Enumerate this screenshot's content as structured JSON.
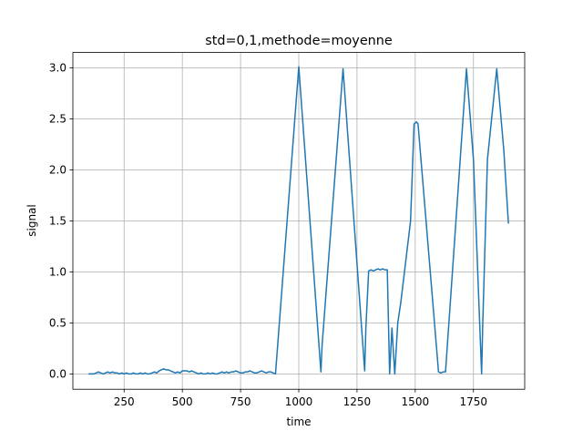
{
  "chart_data": {
    "type": "line",
    "title": "std=0,1,methode=moyenne",
    "xlabel": "time",
    "ylabel": "signal",
    "xlim": [
      30,
      1970
    ],
    "ylim": [
      -0.15,
      3.15
    ],
    "grid": true,
    "x_ticks": [
      250,
      500,
      750,
      1000,
      1250,
      1500,
      1750
    ],
    "x_tick_labels": [
      "250",
      "500",
      "750",
      "1000",
      "1250",
      "1500",
      "1750"
    ],
    "y_ticks": [
      0.0,
      0.5,
      1.0,
      1.5,
      2.0,
      2.5,
      3.0
    ],
    "y_tick_labels": [
      "0.0",
      "0.5",
      "1.0",
      "1.5",
      "2.0",
      "2.5",
      "3.0"
    ],
    "series": [
      {
        "color": "#1f77b4",
        "x": [
          100,
          120,
          130,
          140,
          150,
          160,
          170,
          180,
          190,
          200,
          210,
          220,
          230,
          240,
          250,
          260,
          270,
          280,
          290,
          300,
          310,
          320,
          330,
          340,
          350,
          360,
          370,
          380,
          390,
          400,
          410,
          420,
          430,
          440,
          450,
          460,
          470,
          480,
          490,
          500,
          510,
          520,
          530,
          540,
          550,
          560,
          570,
          580,
          590,
          600,
          610,
          620,
          630,
          640,
          650,
          660,
          670,
          680,
          690,
          700,
          710,
          720,
          730,
          740,
          750,
          760,
          770,
          780,
          790,
          800,
          810,
          820,
          830,
          840,
          850,
          860,
          870,
          880,
          890,
          900,
          1000,
          1095,
          1100,
          1190,
          1283,
          1288,
          1300,
          1310,
          1320,
          1340,
          1350,
          1360,
          1370,
          1380,
          1390,
          1400,
          1412,
          1425,
          1438,
          1480,
          1495,
          1505,
          1512,
          1600,
          1610,
          1620,
          1630,
          1720,
          1750,
          1785,
          1790,
          1810,
          1850,
          1880,
          1900
        ],
        "y": [
          0.0,
          0.0,
          0.01,
          0.02,
          0.01,
          0.0,
          0.01,
          0.02,
          0.01,
          0.02,
          0.01,
          0.01,
          0.0,
          0.01,
          0.0,
          0.01,
          0.0,
          0.0,
          0.01,
          0.0,
          0.0,
          0.01,
          0.0,
          0.01,
          0.0,
          0.0,
          0.01,
          0.02,
          0.01,
          0.03,
          0.04,
          0.05,
          0.04,
          0.04,
          0.03,
          0.02,
          0.01,
          0.02,
          0.01,
          0.03,
          0.03,
          0.03,
          0.02,
          0.03,
          0.02,
          0.01,
          0.0,
          0.01,
          0.0,
          0.0,
          0.01,
          0.0,
          0.01,
          0.0,
          0.0,
          0.01,
          0.02,
          0.01,
          0.02,
          0.01,
          0.02,
          0.02,
          0.03,
          0.02,
          0.01,
          0.01,
          0.02,
          0.02,
          0.03,
          0.02,
          0.01,
          0.01,
          0.02,
          0.03,
          0.02,
          0.01,
          0.02,
          0.02,
          0.01,
          0.0,
          3.01,
          0.02,
          0.28,
          2.99,
          0.03,
          0.45,
          1.01,
          1.02,
          1.01,
          1.03,
          1.02,
          1.03,
          1.02,
          1.02,
          0.0,
          0.45,
          0.0,
          0.5,
          0.7,
          1.5,
          2.45,
          2.47,
          2.45,
          0.02,
          0.01,
          0.02,
          0.02,
          2.99,
          2.1,
          0.0,
          0.5,
          2.1,
          2.99,
          2.2,
          1.48
        ]
      }
    ]
  }
}
